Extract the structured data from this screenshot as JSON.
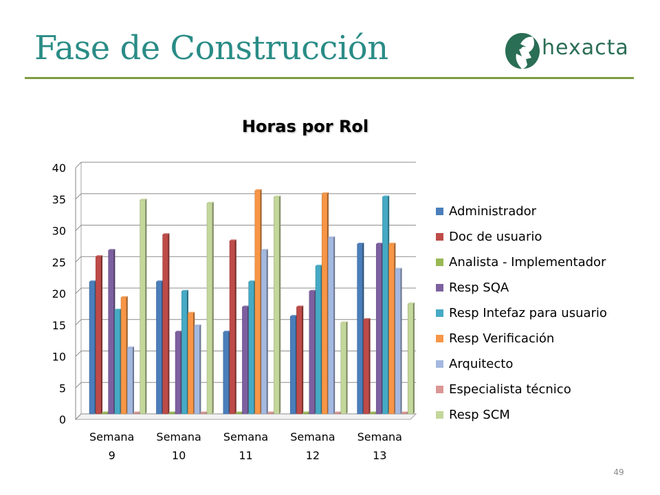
{
  "slide": {
    "title": "Fase de Construcción",
    "page_number": "49",
    "logo": {
      "text": "hexacta",
      "icon": "hexacta-logo-icon",
      "color": "#2a6e55"
    },
    "title_color": "#2a8c86",
    "rule_color": "#7d9c3f"
  },
  "chart_data": {
    "type": "bar",
    "title": "Horas por Rol",
    "xlabel": "",
    "ylabel": "",
    "ylim": [
      0,
      40
    ],
    "yticks": [
      "0",
      "5",
      "10",
      "15",
      "20",
      "25",
      "30",
      "35",
      "40"
    ],
    "grid": true,
    "legend_position": "right",
    "categories": [
      [
        "Semana",
        "9"
      ],
      [
        "Semana",
        "10"
      ],
      [
        "Semana",
        "11"
      ],
      [
        "Semana",
        "12"
      ],
      [
        "Semana",
        "13"
      ]
    ],
    "series": [
      {
        "name": "Administrador",
        "color": "#4a7ebb",
        "values": [
          21,
          21,
          13,
          15.5,
          27
        ]
      },
      {
        "name": "Doc de usuario",
        "color": "#be4b48",
        "values": [
          25,
          28.5,
          27.5,
          17,
          15
        ]
      },
      {
        "name": "Analista - Implementador",
        "color": "#98b954",
        "values": [
          0,
          0,
          0,
          0,
          0
        ]
      },
      {
        "name": "Resp SQA",
        "color": "#7d60a0",
        "values": [
          26,
          13,
          17,
          19.5,
          27
        ]
      },
      {
        "name": "Resp Intefaz para usuario",
        "color": "#46aac5",
        "values": [
          16.5,
          19.5,
          21,
          23.5,
          34.5
        ]
      },
      {
        "name": "Resp Verificación",
        "color": "#f79646",
        "values": [
          18.5,
          16,
          35.5,
          35,
          27
        ]
      },
      {
        "name": "Arquitecto",
        "color": "#a5b9e0",
        "values": [
          10.5,
          14,
          26,
          28,
          23
        ]
      },
      {
        "name": "Especialista técnico",
        "color": "#da9694",
        "values": [
          0,
          0,
          0,
          0,
          0
        ]
      },
      {
        "name": "Resp SCM",
        "color": "#c4d79b",
        "values": [
          34,
          33.5,
          34.5,
          14.5,
          17.5
        ]
      }
    ]
  }
}
